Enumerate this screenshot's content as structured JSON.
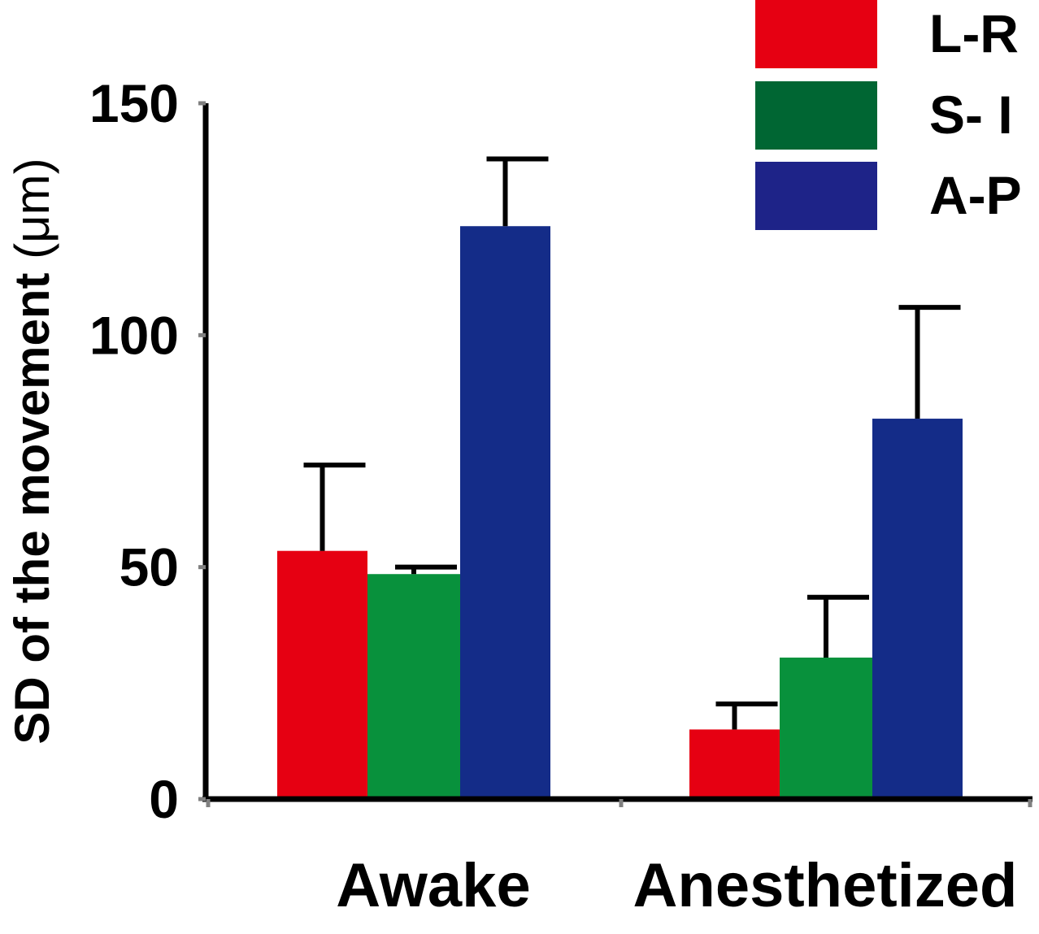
{
  "chart_data": {
    "type": "bar",
    "title": "",
    "xlabel": "",
    "ylabel": "SD of the movement (μm)",
    "ylabel_main": "SD of the movement ",
    "ylabel_unit": "(μm)",
    "ylim": [
      0,
      150
    ],
    "yticks": [
      0,
      50,
      100,
      150
    ],
    "categories": [
      "Awake",
      "Anesthetized"
    ],
    "legend_position": "top-right",
    "series": [
      {
        "name": "L-R",
        "color": "#e60012",
        "values": [
          53.5,
          15
        ],
        "errors": [
          18.5,
          5.5
        ]
      },
      {
        "name": "S- I",
        "color": "#08913c",
        "legend_color": "#006633",
        "values": [
          48.5,
          30.5
        ],
        "errors": [
          1.5,
          13
        ]
      },
      {
        "name": "A-P",
        "color": "#142c88",
        "legend_color": "#1e2388",
        "values": [
          123.5,
          82
        ],
        "errors": [
          14.5,
          24
        ]
      }
    ]
  }
}
